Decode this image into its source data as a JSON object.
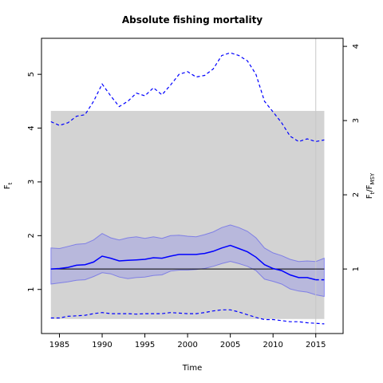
{
  "chart_data": {
    "type": "line",
    "title": "Absolute fishing mortality",
    "xlabel": "Time",
    "ylabel": "F",
    "ylabel_sub": "t",
    "y2label_num": "F",
    "y2label_num_sub": "t",
    "y2label_den": "F",
    "y2label_den_sub": "MSY",
    "xlim": [
      1982.9,
      2018.2
    ],
    "ylim": [
      0.18,
      5.67
    ],
    "x_ticks": [
      1985,
      1990,
      1995,
      2000,
      2005,
      2010,
      2015
    ],
    "y_ticks": [
      1,
      2,
      3,
      4,
      5
    ],
    "y2_ticks": [
      1,
      2,
      3,
      4
    ],
    "y2_scale": 1.38,
    "grey_band": {
      "x": [
        1984,
        2016
      ],
      "y": [
        0.45,
        4.32
      ]
    },
    "vertical_line_x": 2015,
    "reference_line_y": 1.38,
    "colors": {
      "median": "#0000ff",
      "ci": "#0000ff",
      "band": "#b3b3dd",
      "grey": "#d3d3d3",
      "ref": "#000000",
      "vline": "#c8c8c8"
    },
    "x": [
      1984,
      1985,
      1986,
      1987,
      1988,
      1989,
      1990,
      1991,
      1992,
      1993,
      1994,
      1995,
      1996,
      1997,
      1998,
      1999,
      2000,
      2001,
      2002,
      2003,
      2004,
      2005,
      2006,
      2007,
      2008,
      2009,
      2010,
      2011,
      2012,
      2013,
      2014,
      2015,
      2016
    ],
    "series": [
      {
        "role": "median",
        "values": [
          1.38,
          1.39,
          1.41,
          1.45,
          1.46,
          1.51,
          1.62,
          1.58,
          1.53,
          1.54,
          1.55,
          1.56,
          1.59,
          1.58,
          1.62,
          1.65,
          1.65,
          1.65,
          1.67,
          1.71,
          1.77,
          1.82,
          1.76,
          1.7,
          1.6,
          1.46,
          1.39,
          1.35,
          1.27,
          1.22,
          1.22,
          1.18,
          1.18
        ]
      },
      {
        "role": "band_upper",
        "values": [
          1.77,
          1.76,
          1.8,
          1.84,
          1.85,
          1.92,
          2.04,
          1.96,
          1.92,
          1.96,
          1.98,
          1.95,
          1.98,
          1.95,
          2.0,
          2.01,
          1.99,
          1.98,
          2.02,
          2.07,
          2.15,
          2.2,
          2.15,
          2.08,
          1.96,
          1.77,
          1.68,
          1.63,
          1.56,
          1.52,
          1.53,
          1.52,
          1.58
        ]
      },
      {
        "role": "band_lower",
        "values": [
          1.1,
          1.12,
          1.14,
          1.17,
          1.18,
          1.24,
          1.31,
          1.29,
          1.23,
          1.2,
          1.22,
          1.23,
          1.26,
          1.27,
          1.34,
          1.36,
          1.36,
          1.37,
          1.39,
          1.43,
          1.48,
          1.52,
          1.48,
          1.43,
          1.35,
          1.19,
          1.15,
          1.1,
          1.01,
          0.97,
          0.95,
          0.9,
          0.87
        ]
      },
      {
        "role": "ci_upper",
        "values": [
          4.12,
          4.05,
          4.1,
          4.22,
          4.25,
          4.5,
          4.82,
          4.6,
          4.4,
          4.5,
          4.65,
          4.6,
          4.75,
          4.62,
          4.8,
          5.0,
          5.05,
          4.95,
          4.98,
          5.1,
          5.35,
          5.4,
          5.35,
          5.25,
          5.0,
          4.5,
          4.3,
          4.1,
          3.85,
          3.75,
          3.8,
          3.75,
          3.78
        ]
      },
      {
        "role": "ci_lower",
        "values": [
          0.47,
          0.47,
          0.5,
          0.51,
          0.52,
          0.55,
          0.57,
          0.55,
          0.55,
          0.55,
          0.54,
          0.55,
          0.55,
          0.55,
          0.57,
          0.56,
          0.55,
          0.55,
          0.57,
          0.6,
          0.62,
          0.62,
          0.58,
          0.53,
          0.48,
          0.44,
          0.44,
          0.42,
          0.4,
          0.4,
          0.38,
          0.37,
          0.36
        ]
      }
    ]
  }
}
